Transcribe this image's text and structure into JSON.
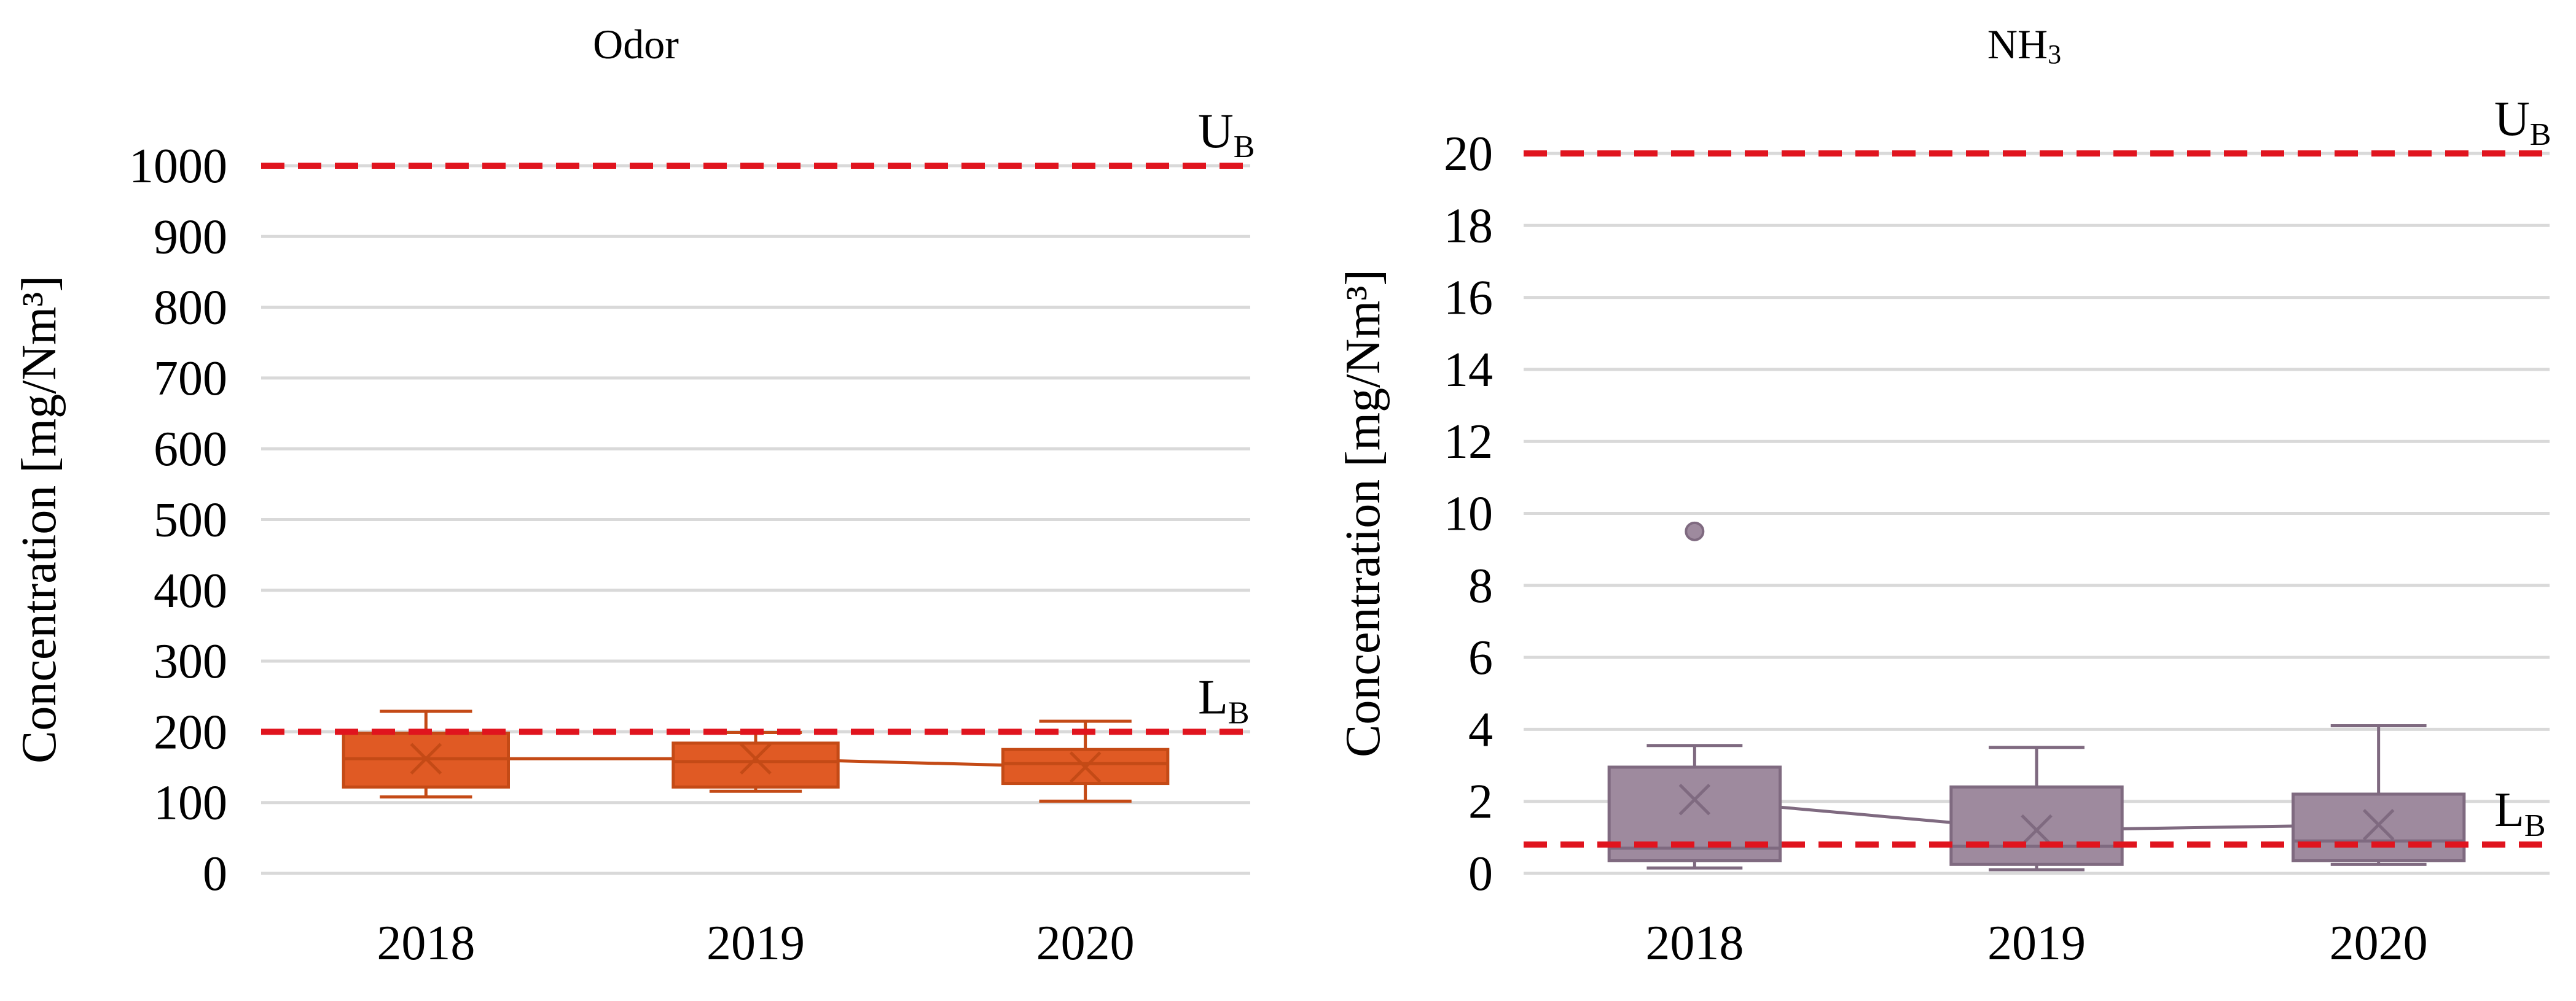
{
  "chart_data": [
    {
      "type": "box",
      "title": "Odor",
      "ylabel": "Concentration [mg/Nm³]",
      "xlabel": "",
      "ylim": [
        0,
        1000
      ],
      "yticks": [
        0,
        100,
        200,
        300,
        400,
        500,
        600,
        700,
        800,
        900,
        1000
      ],
      "grid": true,
      "categories": [
        "2018",
        "2019",
        "2020"
      ],
      "color": "#e05a24",
      "stroke": "#c44a16",
      "boxes": [
        {
          "category": "2018",
          "min": 108,
          "q1": 122,
          "median": 162,
          "q3": 198,
          "max": 229,
          "mean": 162,
          "outliers": []
        },
        {
          "category": "2019",
          "min": 116,
          "q1": 122,
          "median": 158,
          "q3": 184,
          "max": 199,
          "mean": 162,
          "outliers": []
        },
        {
          "category": "2020",
          "min": 102,
          "q1": 127,
          "median": 155,
          "q3": 175,
          "max": 215,
          "mean": 150,
          "outliers": []
        }
      ],
      "mean_line": true,
      "reference_lines": [
        {
          "label": "U",
          "subscript": "B",
          "value": 1000,
          "color": "#e0141e"
        },
        {
          "label": "L",
          "subscript": "B",
          "value": 200,
          "color": "#e0141e"
        }
      ]
    },
    {
      "type": "box",
      "title": "NH",
      "title_subscript": "3",
      "ylabel": "Concentration [mg/Nm³]",
      "xlabel": "",
      "ylim": [
        0,
        20
      ],
      "yticks": [
        0,
        2,
        4,
        6,
        8,
        10,
        12,
        14,
        16,
        18,
        20
      ],
      "grid": true,
      "categories": [
        "2018",
        "2019",
        "2020"
      ],
      "color": "#9e8a9e",
      "stroke": "#7f6a80",
      "boxes": [
        {
          "category": "2018",
          "min": 0.15,
          "q1": 0.35,
          "median": 0.7,
          "q3": 2.95,
          "max": 3.55,
          "mean": 2.05,
          "outliers": [
            9.5
          ]
        },
        {
          "category": "2019",
          "min": 0.1,
          "q1": 0.25,
          "median": 0.75,
          "q3": 2.4,
          "max": 3.5,
          "mean": 1.2,
          "outliers": []
        },
        {
          "category": "2020",
          "min": 0.25,
          "q1": 0.35,
          "median": 0.9,
          "q3": 2.2,
          "max": 4.1,
          "mean": 1.35,
          "outliers": []
        }
      ],
      "mean_line": true,
      "reference_lines": [
        {
          "label": "U",
          "subscript": "B",
          "value": 20,
          "color": "#e0141e"
        },
        {
          "label": "L",
          "subscript": "B",
          "value": 0.8,
          "color": "#e0141e"
        }
      ]
    }
  ]
}
